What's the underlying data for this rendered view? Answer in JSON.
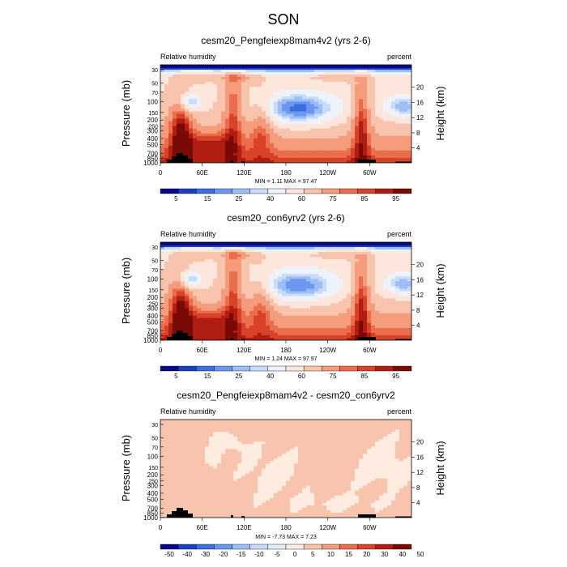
{
  "figure": {
    "title": "SON"
  },
  "colors": {
    "rh_scale": [
      "#08088a",
      "#1f3fc2",
      "#3b6fe0",
      "#6b97ef",
      "#9dbdf5",
      "#c8dbfa",
      "#eef3fb",
      "#fde6db",
      "#f9c4ad",
      "#f49c7c",
      "#ea6d4c",
      "#d84228",
      "#b01d12",
      "#7a0a05"
    ],
    "diff_scale": [
      "#08088a",
      "#1f3fc2",
      "#3b6fe0",
      "#6b97ef",
      "#9dbdf5",
      "#c8dbfa",
      "#e1ecfb",
      "#fdecdf",
      "#f9c4ad",
      "#f49c7c",
      "#ea6d4c",
      "#d84228",
      "#b01d12",
      "#7a0a05"
    ],
    "topo": "#000000"
  },
  "chart_data": [
    {
      "type": "heatmap",
      "title": "cesm20_Pengfeiexp8mam4v2 (yrs 2-6)",
      "left_label": "Relative humidity",
      "right_label": "percent",
      "ylabel": "Pressure (mb)",
      "ylabel_right": "Height (km)",
      "xticks": [
        "0",
        "60E",
        "120E",
        "180",
        "120W",
        "60W"
      ],
      "yticks": [
        "30",
        "50",
        "70",
        "100",
        "150",
        "200",
        "250",
        "300",
        "400",
        "500",
        "700",
        "850",
        "1000"
      ],
      "yticks_right": [
        "20",
        "16",
        "12",
        "8",
        "4"
      ],
      "minmax": "MIN =   1.11  MAX =  97.47",
      "colorbar_labels": [
        "5",
        "15",
        "25",
        "40",
        "60",
        "75",
        "85",
        "95"
      ],
      "colorbar_levels": [
        5,
        10,
        15,
        20,
        25,
        30,
        40,
        50,
        60,
        70,
        75,
        80,
        85,
        90,
        95
      ]
    },
    {
      "type": "heatmap",
      "title": "cesm20_con6yrv2 (yrs 2-6)",
      "left_label": "Relative humidity",
      "right_label": "percent",
      "ylabel": "Pressure (mb)",
      "ylabel_right": "Height (km)",
      "xticks": [
        "0",
        "60E",
        "120E",
        "180",
        "120W",
        "60W"
      ],
      "yticks": [
        "30",
        "50",
        "70",
        "100",
        "150",
        "200",
        "250",
        "300",
        "400",
        "500",
        "700",
        "850",
        "1000"
      ],
      "yticks_right": [
        "20",
        "16",
        "12",
        "8",
        "4"
      ],
      "minmax": "MIN =   1.24  MAX =  97.97",
      "colorbar_labels": [
        "5",
        "15",
        "25",
        "40",
        "60",
        "75",
        "85",
        "95"
      ],
      "colorbar_levels": [
        5,
        10,
        15,
        20,
        25,
        30,
        40,
        50,
        60,
        70,
        75,
        80,
        85,
        90,
        95
      ]
    },
    {
      "type": "heatmap",
      "title": "cesm20_Pengfeiexp8mam4v2 - cesm20_con6yrv2",
      "left_label": "Relative humidity",
      "right_label": "percent",
      "ylabel": "Pressure (mb)",
      "ylabel_right": "Height (km)",
      "xticks": [
        "0",
        "60E",
        "120E",
        "180",
        "120W",
        "60W"
      ],
      "yticks": [
        "30",
        "50",
        "70",
        "100",
        "150",
        "200",
        "250",
        "300",
        "400",
        "500",
        "700",
        "850",
        "1000"
      ],
      "yticks_right": [
        "20",
        "16",
        "12",
        "8",
        "4"
      ],
      "minmax": "MIN =  -7.73  MAX =   7.23",
      "colorbar_labels": [
        "-50",
        "-40",
        "-30",
        "-20",
        "-15",
        "-10",
        "-5",
        "0",
        "5",
        "10",
        "15",
        "20",
        "30",
        "40",
        "50"
      ],
      "colorbar_levels": [
        -50,
        -40,
        -30,
        -20,
        -15,
        -10,
        -5,
        0,
        5,
        10,
        15,
        20,
        30,
        40,
        50
      ]
    }
  ]
}
